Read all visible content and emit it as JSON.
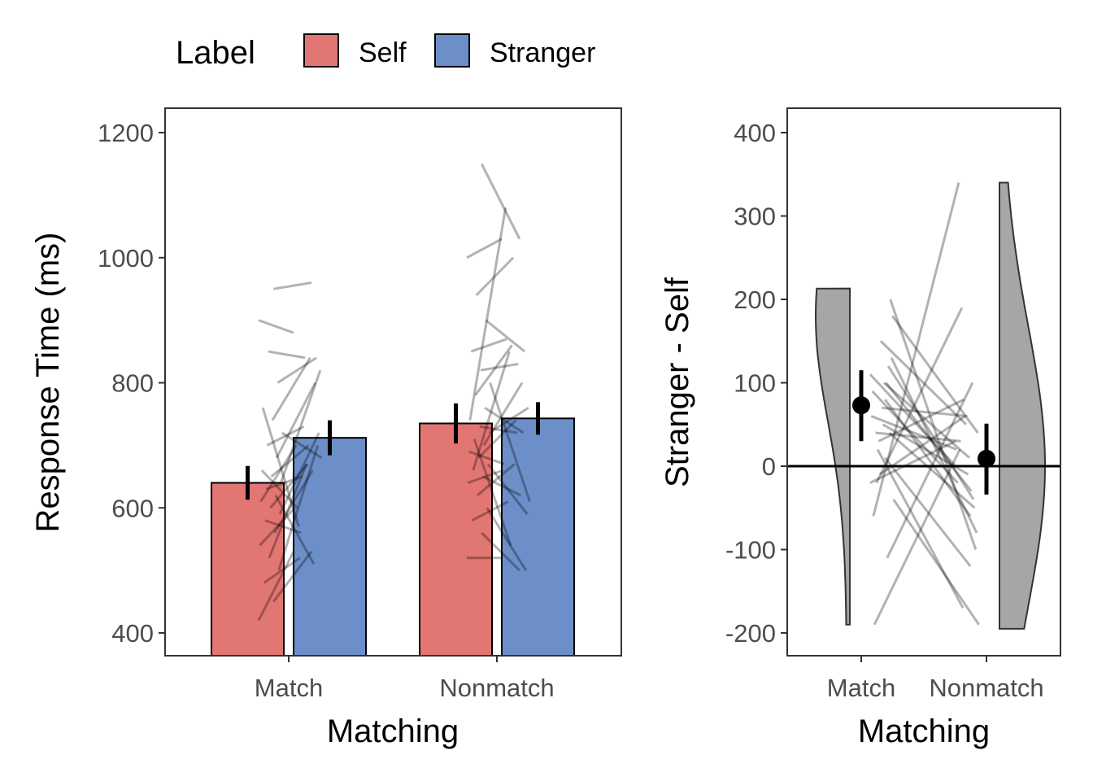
{
  "legend": {
    "title": "Label",
    "items": [
      {
        "label": "Self",
        "color": "#E27673"
      },
      {
        "label": "Stranger",
        "color": "#6C8FC9"
      }
    ]
  },
  "chart_data": [
    {
      "type": "bar",
      "title": "",
      "xlabel": "Matching",
      "ylabel": "Response Time (ms)",
      "categories": [
        "Match",
        "Nonmatch"
      ],
      "ylim": [
        364,
        1240
      ],
      "yticks": [
        400,
        600,
        800,
        1000,
        1200
      ],
      "ytick_labels": [
        "400",
        "600",
        "800",
        "1000",
        "1200"
      ],
      "series": [
        {
          "name": "Self",
          "values": [
            640,
            735
          ],
          "errors": [
            27,
            32
          ]
        },
        {
          "name": "Stranger",
          "values": [
            712,
            743
          ],
          "errors": [
            28,
            26
          ]
        }
      ],
      "subjects": {
        "self_match": [
          420,
          450,
          480,
          500,
          520,
          540,
          560,
          580,
          590,
          600,
          610,
          620,
          630,
          640,
          650,
          660,
          680,
          700,
          720,
          740,
          760,
          800,
          850,
          900,
          950
        ],
        "stranger_match": [
          530,
          530,
          520,
          700,
          670,
          600,
          660,
          560,
          720,
          670,
          700,
          510,
          650,
          820,
          700,
          600,
          800,
          730,
          680,
          840,
          570,
          840,
          840,
          880,
          960
        ],
        "self_nonmatch": [
          520,
          560,
          580,
          600,
          620,
          640,
          650,
          660,
          670,
          680,
          690,
          700,
          710,
          720,
          730,
          740,
          760,
          780,
          800,
          820,
          850,
          900,
          940,
          1000,
          1150
        ],
        "stranger_nonmatch": [
          520,
          500,
          610,
          500,
          670,
          660,
          620,
          850,
          590,
          740,
          670,
          800,
          540,
          760,
          720,
          1080,
          720,
          860,
          610,
          830,
          870,
          850,
          1000,
          1030,
          1030
        ]
      }
    },
    {
      "type": "violin",
      "title": "",
      "xlabel": "Matching",
      "ylabel": "Stranger - Self",
      "categories": [
        "Match",
        "Nonmatch"
      ],
      "ylim": [
        -230,
        430
      ],
      "yticks": [
        -200,
        -100,
        0,
        100,
        200,
        300,
        400
      ],
      "ytick_labels": [
        "-200",
        "-100",
        "0",
        "100",
        "200",
        "300",
        "400"
      ],
      "means": [
        73,
        9
      ],
      "ci": [
        [
          30,
          115
        ],
        [
          -34,
          51
        ]
      ],
      "violin_range": [
        [
          -190,
          213
        ],
        [
          -195,
          340
        ]
      ],
      "reference_line": 0
    }
  ]
}
